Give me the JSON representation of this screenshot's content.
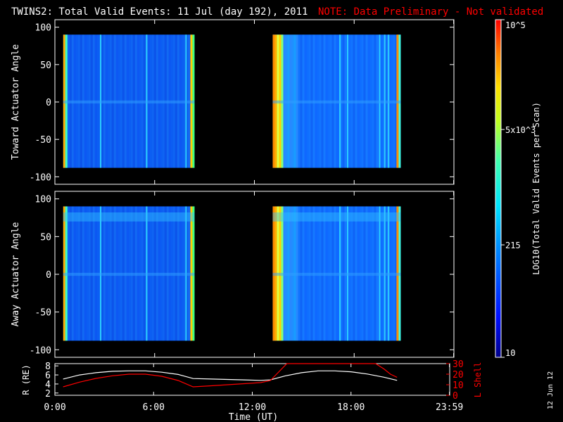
{
  "header": {
    "title": "TWINS2: Total Valid Events: 11 Jul (day 192), 2011",
    "note": "NOTE: Data Preliminary - Not validated"
  },
  "footer": {
    "date_stamp": "12 Jun 12"
  },
  "colors": {
    "background": "#000000",
    "axes": "#ffffff",
    "note": "#ff0000",
    "r_curve": "#ffffff",
    "l_curve": "#ff0000"
  },
  "chart_data": [
    {
      "type": "heatmap",
      "id": "toward",
      "title": "",
      "ylabel": "Toward Actuator Angle",
      "xlabel": "",
      "xlim": [
        0,
        24
      ],
      "ylim": [
        -110,
        110
      ],
      "data_ylim": [
        -88,
        90
      ],
      "yticks": [
        100,
        50,
        0,
        -50,
        -100
      ],
      "segments": [
        {
          "start": 0.5,
          "end": 8.4
        },
        {
          "start": 13.1,
          "end": 20.8
        }
      ],
      "colorscale": "log",
      "color_label": "LOG10(Total Valid Events per Scan)"
    },
    {
      "type": "heatmap",
      "id": "away",
      "title": "",
      "ylabel": "Away Actuator Angle",
      "xlabel": "",
      "xlim": [
        0,
        24
      ],
      "ylim": [
        -110,
        110
      ],
      "data_ylim": [
        -88,
        90
      ],
      "yticks": [
        100,
        50,
        0,
        -50,
        -100
      ],
      "segments": [
        {
          "start": 0.5,
          "end": 8.4
        },
        {
          "start": 13.1,
          "end": 20.8
        }
      ],
      "colorscale": "log",
      "color_label": "LOG10(Total Valid Events per Scan)"
    },
    {
      "type": "line",
      "id": "orbit",
      "title": "",
      "xlabel": "Time (UT)",
      "ylabel": "R (RE)",
      "ylabel_right": "L Shell",
      "xlim": [
        0,
        24
      ],
      "xticks": [
        0,
        6,
        12,
        18,
        23.983
      ],
      "xtick_labels": [
        "0:00",
        "6:00",
        "12:00",
        "18:00",
        "23:59"
      ],
      "ylim": [
        1.5,
        8.5
      ],
      "yticks": [
        2,
        4,
        6,
        8
      ],
      "y2lim": [
        0,
        30
      ],
      "y2ticks": [
        0,
        10,
        20,
        30
      ],
      "series": [
        {
          "name": "R (RE)",
          "axis": "left",
          "x": [
            0.5,
            1.5,
            2.5,
            3.5,
            4.5,
            5.5,
            6.5,
            7.5,
            8.4,
            9.5,
            10.5,
            11.5,
            12.5,
            13.1,
            14,
            15,
            16,
            17,
            18,
            19,
            20,
            20.8
          ],
          "y": [
            5.1,
            6.0,
            6.5,
            6.8,
            6.9,
            6.9,
            6.6,
            6.1,
            5.2,
            5.1,
            5.0,
            4.9,
            4.8,
            4.9,
            5.8,
            6.5,
            6.9,
            6.9,
            6.7,
            6.2,
            5.5,
            4.8
          ]
        },
        {
          "name": "L Shell",
          "axis": "right",
          "x": [
            0.5,
            1.5,
            2.5,
            3.5,
            4.5,
            5.5,
            6.5,
            7.5,
            8.4,
            9.5,
            10.5,
            11.5,
            12.5,
            13.1,
            13.6,
            14.1,
            19.5,
            20,
            20.4,
            20.8
          ],
          "y": [
            8.0,
            12.5,
            16.0,
            18.5,
            20.0,
            20.0,
            18.0,
            14.0,
            8.0,
            9.0,
            10.0,
            11.0,
            12.0,
            14.0,
            22.0,
            33.0,
            33.0,
            25.0,
            20.0,
            17.0
          ]
        }
      ]
    },
    {
      "type": "colorbar",
      "id": "colorbar",
      "scale": "log",
      "range": [
        10,
        100000
      ],
      "ticks": [
        10,
        215,
        5000,
        100000
      ],
      "tick_labels": [
        "10",
        "215",
        "5x10^3",
        "10^5"
      ],
      "label": "LOG10(Total Valid Events per Scan)"
    }
  ]
}
